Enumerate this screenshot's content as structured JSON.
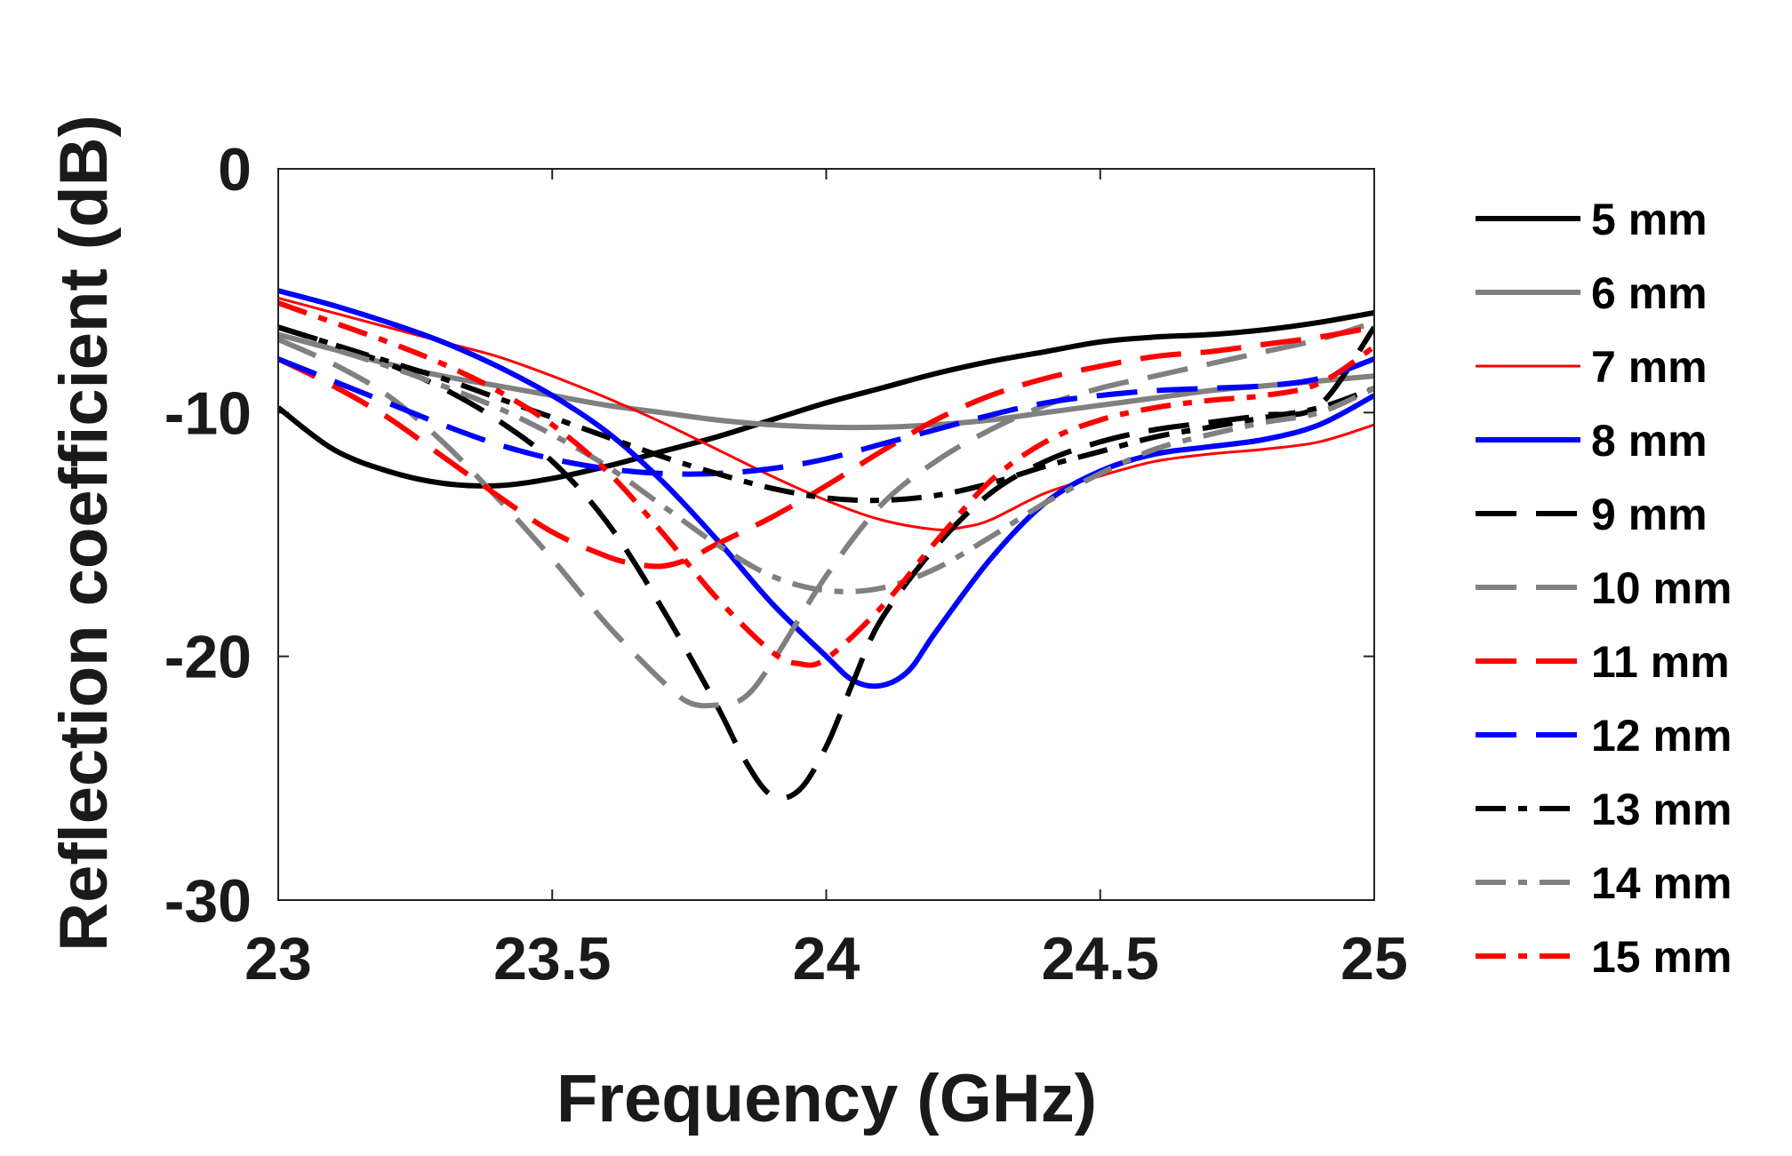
{
  "chart_data": {
    "type": "line",
    "title": "",
    "xlabel": "Frequency (GHz)",
    "ylabel": "Reflection coefficient (dB)",
    "xlim": [
      23,
      25
    ],
    "ylim": [
      -30,
      0
    ],
    "xticks": [
      23,
      23.5,
      24,
      24.5,
      25
    ],
    "xtick_labels": [
      "23",
      "23.5",
      "24",
      "24.5",
      "25"
    ],
    "yticks": [
      0,
      -10,
      -20,
      -30
    ],
    "ytick_labels": [
      "0",
      "-10",
      "-20",
      "-30"
    ],
    "grid": false,
    "legend_position": "outside-right",
    "series": [
      {
        "name": "5 mm",
        "color": "#000000",
        "style": "solid",
        "weight": "thick",
        "points": [
          [
            23,
            -9.8
          ],
          [
            23.1,
            -11.5
          ],
          [
            23.2,
            -12.4
          ],
          [
            23.3,
            -12.9
          ],
          [
            23.4,
            -13.0
          ],
          [
            23.5,
            -12.7
          ],
          [
            23.6,
            -12.2
          ],
          [
            23.7,
            -11.6
          ],
          [
            23.8,
            -11.0
          ],
          [
            23.9,
            -10.3
          ],
          [
            24.0,
            -9.6
          ],
          [
            24.1,
            -9.0
          ],
          [
            24.2,
            -8.4
          ],
          [
            24.3,
            -7.9
          ],
          [
            24.4,
            -7.5
          ],
          [
            24.5,
            -7.1
          ],
          [
            24.6,
            -6.9
          ],
          [
            24.7,
            -6.8
          ],
          [
            24.8,
            -6.6
          ],
          [
            24.9,
            -6.3
          ],
          [
            25.0,
            -5.9
          ]
        ]
      },
      {
        "name": "6 mm",
        "color": "#808080",
        "style": "solid",
        "weight": "thick",
        "points": [
          [
            23,
            -6.8
          ],
          [
            23.1,
            -7.4
          ],
          [
            23.2,
            -8.0
          ],
          [
            23.3,
            -8.5
          ],
          [
            23.4,
            -8.9
          ],
          [
            23.5,
            -9.3
          ],
          [
            23.6,
            -9.7
          ],
          [
            23.7,
            -10.0
          ],
          [
            23.8,
            -10.3
          ],
          [
            23.9,
            -10.5
          ],
          [
            24.0,
            -10.6
          ],
          [
            24.1,
            -10.6
          ],
          [
            24.2,
            -10.5
          ],
          [
            24.3,
            -10.3
          ],
          [
            24.4,
            -10.0
          ],
          [
            24.5,
            -9.7
          ],
          [
            24.6,
            -9.4
          ],
          [
            24.7,
            -9.1
          ],
          [
            24.8,
            -8.9
          ],
          [
            24.9,
            -8.7
          ],
          [
            25.0,
            -8.5
          ]
        ]
      },
      {
        "name": "7 mm",
        "color": "#ff0000",
        "style": "solid",
        "weight": "thin",
        "points": [
          [
            23,
            -5.3
          ],
          [
            23.1,
            -5.9
          ],
          [
            23.2,
            -6.5
          ],
          [
            23.3,
            -7.1
          ],
          [
            23.4,
            -7.7
          ],
          [
            23.5,
            -8.5
          ],
          [
            23.6,
            -9.4
          ],
          [
            23.7,
            -10.4
          ],
          [
            23.8,
            -11.5
          ],
          [
            23.9,
            -12.6
          ],
          [
            24.0,
            -13.6
          ],
          [
            24.1,
            -14.4
          ],
          [
            24.2,
            -14.8
          ],
          [
            24.25,
            -14.7
          ],
          [
            24.3,
            -14.4
          ],
          [
            24.4,
            -13.3
          ],
          [
            24.5,
            -12.6
          ],
          [
            24.6,
            -12.0
          ],
          [
            24.7,
            -11.7
          ],
          [
            24.8,
            -11.5
          ],
          [
            24.9,
            -11.2
          ],
          [
            25.0,
            -10.5
          ]
        ]
      },
      {
        "name": "8 mm",
        "color": "#0000ff",
        "style": "solid",
        "weight": "thick",
        "points": [
          [
            23,
            -5.0
          ],
          [
            23.1,
            -5.6
          ],
          [
            23.2,
            -6.3
          ],
          [
            23.3,
            -7.1
          ],
          [
            23.4,
            -8.1
          ],
          [
            23.5,
            -9.3
          ],
          [
            23.6,
            -10.8
          ],
          [
            23.7,
            -12.8
          ],
          [
            23.8,
            -15.2
          ],
          [
            23.9,
            -17.8
          ],
          [
            24.0,
            -20.0
          ],
          [
            24.05,
            -21.0
          ],
          [
            24.1,
            -21.2
          ],
          [
            24.15,
            -20.6
          ],
          [
            24.2,
            -19.0
          ],
          [
            24.3,
            -16.0
          ],
          [
            24.4,
            -13.7
          ],
          [
            24.5,
            -12.4
          ],
          [
            24.6,
            -11.7
          ],
          [
            24.7,
            -11.4
          ],
          [
            24.8,
            -11.1
          ],
          [
            24.9,
            -10.5
          ],
          [
            25.0,
            -9.3
          ]
        ]
      },
      {
        "name": "9 mm",
        "color": "#000000",
        "style": "dash",
        "weight": "thick",
        "points": [
          [
            23,
            -6.5
          ],
          [
            23.1,
            -7.2
          ],
          [
            23.2,
            -8.0
          ],
          [
            23.3,
            -9.0
          ],
          [
            23.4,
            -10.3
          ],
          [
            23.5,
            -12.0
          ],
          [
            23.6,
            -14.5
          ],
          [
            23.7,
            -18.0
          ],
          [
            23.8,
            -22.0
          ],
          [
            23.85,
            -24.2
          ],
          [
            23.9,
            -25.7
          ],
          [
            23.95,
            -25.5
          ],
          [
            24.0,
            -23.7
          ],
          [
            24.05,
            -21.0
          ],
          [
            24.1,
            -18.5
          ],
          [
            24.2,
            -15.5
          ],
          [
            24.3,
            -13.3
          ],
          [
            24.4,
            -12.0
          ],
          [
            24.5,
            -11.2
          ],
          [
            24.6,
            -10.7
          ],
          [
            24.7,
            -10.4
          ],
          [
            24.8,
            -10.1
          ],
          [
            24.9,
            -9.7
          ],
          [
            25.0,
            -6.5
          ]
        ]
      },
      {
        "name": "10 mm",
        "color": "#808080",
        "style": "dash",
        "weight": "thick",
        "points": [
          [
            23,
            -7.0
          ],
          [
            23.1,
            -8.0
          ],
          [
            23.2,
            -9.3
          ],
          [
            23.3,
            -11.2
          ],
          [
            23.4,
            -13.5
          ],
          [
            23.5,
            -16.0
          ],
          [
            23.6,
            -18.7
          ],
          [
            23.7,
            -21.0
          ],
          [
            23.75,
            -21.9
          ],
          [
            23.8,
            -22.0
          ],
          [
            23.85,
            -21.7
          ],
          [
            23.9,
            -20.3
          ],
          [
            24.0,
            -16.7
          ],
          [
            24.1,
            -13.8
          ],
          [
            24.2,
            -12.0
          ],
          [
            24.3,
            -10.7
          ],
          [
            24.4,
            -9.7
          ],
          [
            24.5,
            -9.0
          ],
          [
            24.6,
            -8.5
          ],
          [
            24.7,
            -8.0
          ],
          [
            24.8,
            -7.5
          ],
          [
            24.9,
            -7.0
          ],
          [
            25.0,
            -6.3
          ]
        ]
      },
      {
        "name": "11 mm",
        "color": "#ff0000",
        "style": "dash",
        "weight": "thick",
        "points": [
          [
            23,
            -7.8
          ],
          [
            23.1,
            -8.9
          ],
          [
            23.2,
            -10.2
          ],
          [
            23.3,
            -11.8
          ],
          [
            23.4,
            -13.4
          ],
          [
            23.5,
            -14.9
          ],
          [
            23.6,
            -15.9
          ],
          [
            23.65,
            -16.2
          ],
          [
            23.7,
            -16.3
          ],
          [
            23.75,
            -16.0
          ],
          [
            23.8,
            -15.4
          ],
          [
            23.9,
            -14.3
          ],
          [
            24.0,
            -13.0
          ],
          [
            24.1,
            -11.6
          ],
          [
            24.2,
            -10.3
          ],
          [
            24.3,
            -9.3
          ],
          [
            24.4,
            -8.6
          ],
          [
            24.5,
            -8.1
          ],
          [
            24.6,
            -7.7
          ],
          [
            24.7,
            -7.5
          ],
          [
            24.8,
            -7.2
          ],
          [
            24.9,
            -6.9
          ],
          [
            25.0,
            -6.5
          ]
        ]
      },
      {
        "name": "12 mm",
        "color": "#0000ff",
        "style": "dash",
        "weight": "thick",
        "points": [
          [
            23,
            -7.8
          ],
          [
            23.1,
            -8.7
          ],
          [
            23.2,
            -9.6
          ],
          [
            23.3,
            -10.5
          ],
          [
            23.4,
            -11.3
          ],
          [
            23.5,
            -11.9
          ],
          [
            23.6,
            -12.3
          ],
          [
            23.7,
            -12.5
          ],
          [
            23.8,
            -12.5
          ],
          [
            23.9,
            -12.3
          ],
          [
            24.0,
            -11.9
          ],
          [
            24.1,
            -11.3
          ],
          [
            24.2,
            -10.7
          ],
          [
            24.3,
            -10.1
          ],
          [
            24.4,
            -9.6
          ],
          [
            24.5,
            -9.3
          ],
          [
            24.6,
            -9.1
          ],
          [
            24.7,
            -9.0
          ],
          [
            24.8,
            -8.9
          ],
          [
            24.9,
            -8.6
          ],
          [
            25.0,
            -7.8
          ]
        ]
      },
      {
        "name": "13 mm",
        "color": "#000000",
        "style": "dashdot",
        "weight": "thick",
        "points": [
          [
            23,
            -6.5
          ],
          [
            23.1,
            -7.2
          ],
          [
            23.2,
            -7.9
          ],
          [
            23.3,
            -8.6
          ],
          [
            23.4,
            -9.4
          ],
          [
            23.5,
            -10.2
          ],
          [
            23.6,
            -11.0
          ],
          [
            23.7,
            -11.8
          ],
          [
            23.8,
            -12.5
          ],
          [
            23.9,
            -13.1
          ],
          [
            24.0,
            -13.5
          ],
          [
            24.1,
            -13.6
          ],
          [
            24.2,
            -13.4
          ],
          [
            24.3,
            -12.9
          ],
          [
            24.4,
            -12.2
          ],
          [
            24.5,
            -11.6
          ],
          [
            24.6,
            -11.0
          ],
          [
            24.7,
            -10.6
          ],
          [
            24.8,
            -10.2
          ],
          [
            24.9,
            -9.8
          ],
          [
            25.0,
            -9.0
          ]
        ]
      },
      {
        "name": "14 mm",
        "color": "#808080",
        "style": "dashdot",
        "weight": "thick",
        "points": [
          [
            23,
            -6.8
          ],
          [
            23.1,
            -7.4
          ],
          [
            23.2,
            -8.1
          ],
          [
            23.3,
            -8.9
          ],
          [
            23.4,
            -9.8
          ],
          [
            23.5,
            -10.9
          ],
          [
            23.6,
            -12.2
          ],
          [
            23.7,
            -13.8
          ],
          [
            23.8,
            -15.4
          ],
          [
            23.9,
            -16.7
          ],
          [
            24.0,
            -17.3
          ],
          [
            24.1,
            -17.2
          ],
          [
            24.2,
            -16.4
          ],
          [
            24.3,
            -15.1
          ],
          [
            24.4,
            -13.7
          ],
          [
            24.5,
            -12.5
          ],
          [
            24.6,
            -11.5
          ],
          [
            24.7,
            -10.9
          ],
          [
            24.8,
            -10.4
          ],
          [
            24.9,
            -10.0
          ],
          [
            25.0,
            -9.0
          ]
        ]
      },
      {
        "name": "15 mm",
        "color": "#ff0000",
        "style": "dashdot",
        "weight": "thick",
        "points": [
          [
            23,
            -5.5
          ],
          [
            23.1,
            -6.3
          ],
          [
            23.2,
            -7.1
          ],
          [
            23.3,
            -8.0
          ],
          [
            23.4,
            -9.1
          ],
          [
            23.5,
            -10.5
          ],
          [
            23.6,
            -12.4
          ],
          [
            23.7,
            -14.9
          ],
          [
            23.8,
            -17.6
          ],
          [
            23.9,
            -19.8
          ],
          [
            23.95,
            -20.3
          ],
          [
            24.0,
            -20.1
          ],
          [
            24.1,
            -18.0
          ],
          [
            24.2,
            -15.3
          ],
          [
            24.3,
            -12.8
          ],
          [
            24.4,
            -11.2
          ],
          [
            24.5,
            -10.3
          ],
          [
            24.6,
            -9.8
          ],
          [
            24.7,
            -9.5
          ],
          [
            24.8,
            -9.3
          ],
          [
            24.9,
            -8.8
          ],
          [
            25.0,
            -7.3
          ]
        ]
      }
    ]
  }
}
